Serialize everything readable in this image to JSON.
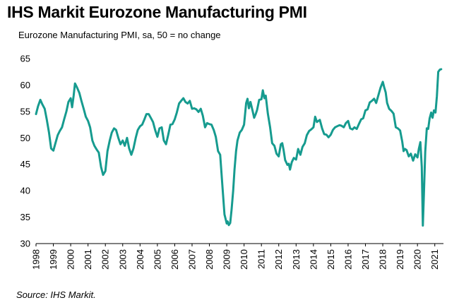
{
  "title": "IHS Markit Eurozone Manufacturing PMI",
  "subtitle": "Eurozone Manufacturing PMI, sa, 50 = no change",
  "source": "Source: IHS Markit.",
  "colors": {
    "line": "#169b8f",
    "axis": "#000000"
  },
  "chart_data": {
    "type": "line",
    "title": "IHS Markit Eurozone Manufacturing PMI",
    "ylabel": "",
    "xlabel": "",
    "ylim": [
      30,
      65
    ],
    "yticks": [
      "30",
      "35",
      "40",
      "45",
      "50",
      "55",
      "60",
      "65"
    ],
    "xlim": [
      1998.0,
      2021.5
    ],
    "xticks": [
      "1998",
      "1999",
      "2000",
      "2001",
      "2002",
      "2003",
      "2004",
      "2005",
      "2006",
      "2007",
      "2008",
      "2009",
      "2010",
      "2011",
      "2012",
      "2013",
      "2014",
      "2015",
      "2016",
      "2017",
      "2018",
      "2019",
      "2020",
      "2021"
    ],
    "grid": false,
    "series": [
      {
        "name": "",
        "points": [
          [
            1998.0,
            54.5
          ],
          [
            1998.12,
            56.0
          ],
          [
            1998.25,
            57.2
          ],
          [
            1998.37,
            56.3
          ],
          [
            1998.5,
            55.5
          ],
          [
            1998.62,
            53.5
          ],
          [
            1998.75,
            51.0
          ],
          [
            1998.87,
            48.0
          ],
          [
            1999.0,
            47.6
          ],
          [
            1999.12,
            49.0
          ],
          [
            1999.25,
            50.5
          ],
          [
            1999.37,
            51.3
          ],
          [
            1999.5,
            52.0
          ],
          [
            1999.62,
            53.5
          ],
          [
            1999.75,
            55.0
          ],
          [
            1999.87,
            56.8
          ],
          [
            2000.0,
            57.5
          ],
          [
            2000.08,
            55.8
          ],
          [
            2000.17,
            58.0
          ],
          [
            2000.25,
            60.3
          ],
          [
            2000.37,
            59.5
          ],
          [
            2000.5,
            58.5
          ],
          [
            2000.62,
            57.0
          ],
          [
            2000.75,
            55.5
          ],
          [
            2000.87,
            54.0
          ],
          [
            2001.0,
            53.2
          ],
          [
            2001.12,
            52.0
          ],
          [
            2001.25,
            49.5
          ],
          [
            2001.37,
            48.5
          ],
          [
            2001.5,
            47.8
          ],
          [
            2001.62,
            47.2
          ],
          [
            2001.75,
            44.5
          ],
          [
            2001.87,
            43.0
          ],
          [
            2002.0,
            43.7
          ],
          [
            2002.12,
            47.5
          ],
          [
            2002.25,
            49.5
          ],
          [
            2002.37,
            51.0
          ],
          [
            2002.5,
            51.8
          ],
          [
            2002.62,
            51.5
          ],
          [
            2002.75,
            50.0
          ],
          [
            2002.87,
            48.8
          ],
          [
            2003.0,
            49.5
          ],
          [
            2003.12,
            48.5
          ],
          [
            2003.25,
            50.0
          ],
          [
            2003.37,
            48.0
          ],
          [
            2003.5,
            46.8
          ],
          [
            2003.62,
            48.0
          ],
          [
            2003.75,
            50.0
          ],
          [
            2003.87,
            51.5
          ],
          [
            2004.0,
            52.2
          ],
          [
            2004.12,
            52.5
          ],
          [
            2004.25,
            53.5
          ],
          [
            2004.37,
            54.5
          ],
          [
            2004.5,
            54.5
          ],
          [
            2004.62,
            53.8
          ],
          [
            2004.75,
            53.0
          ],
          [
            2004.87,
            51.5
          ],
          [
            2005.0,
            50.2
          ],
          [
            2005.12,
            51.8
          ],
          [
            2005.25,
            52.0
          ],
          [
            2005.37,
            49.5
          ],
          [
            2005.5,
            48.8
          ],
          [
            2005.62,
            50.5
          ],
          [
            2005.75,
            52.5
          ],
          [
            2005.87,
            52.6
          ],
          [
            2006.0,
            53.5
          ],
          [
            2006.12,
            54.8
          ],
          [
            2006.25,
            56.5
          ],
          [
            2006.37,
            57.0
          ],
          [
            2006.5,
            57.5
          ],
          [
            2006.62,
            56.8
          ],
          [
            2006.75,
            56.5
          ],
          [
            2006.87,
            57.0
          ],
          [
            2007.0,
            55.5
          ],
          [
            2007.12,
            55.6
          ],
          [
            2007.25,
            55.4
          ],
          [
            2007.37,
            54.9
          ],
          [
            2007.5,
            55.5
          ],
          [
            2007.62,
            54.2
          ],
          [
            2007.75,
            52.0
          ],
          [
            2007.87,
            52.8
          ],
          [
            2008.0,
            52.6
          ],
          [
            2008.12,
            52.5
          ],
          [
            2008.25,
            51.5
          ],
          [
            2008.37,
            50.2
          ],
          [
            2008.5,
            47.5
          ],
          [
            2008.62,
            46.8
          ],
          [
            2008.75,
            41.0
          ],
          [
            2008.87,
            35.5
          ],
          [
            2009.0,
            33.8
          ],
          [
            2009.05,
            34.2
          ],
          [
            2009.12,
            33.5
          ],
          [
            2009.2,
            33.9
          ],
          [
            2009.28,
            36.5
          ],
          [
            2009.37,
            40.0
          ],
          [
            2009.45,
            44.0
          ],
          [
            2009.54,
            47.5
          ],
          [
            2009.62,
            49.5
          ],
          [
            2009.75,
            51.0
          ],
          [
            2009.87,
            51.5
          ],
          [
            2010.0,
            52.5
          ],
          [
            2010.12,
            56.6
          ],
          [
            2010.2,
            57.4
          ],
          [
            2010.28,
            55.6
          ],
          [
            2010.37,
            56.8
          ],
          [
            2010.5,
            55.0
          ],
          [
            2010.58,
            53.8
          ],
          [
            2010.67,
            54.5
          ],
          [
            2010.75,
            55.3
          ],
          [
            2010.87,
            57.2
          ],
          [
            2011.0,
            57.3
          ],
          [
            2011.08,
            59.0
          ],
          [
            2011.17,
            57.5
          ],
          [
            2011.25,
            58.0
          ],
          [
            2011.37,
            54.6
          ],
          [
            2011.5,
            52.0
          ],
          [
            2011.62,
            49.0
          ],
          [
            2011.75,
            48.5
          ],
          [
            2011.87,
            47.0
          ],
          [
            2012.0,
            46.5
          ],
          [
            2012.12,
            48.8
          ],
          [
            2012.2,
            49.0
          ],
          [
            2012.28,
            47.7
          ],
          [
            2012.37,
            45.8
          ],
          [
            2012.5,
            44.9
          ],
          [
            2012.58,
            45.1
          ],
          [
            2012.65,
            44.0
          ],
          [
            2012.75,
            45.4
          ],
          [
            2012.87,
            46.2
          ],
          [
            2013.0,
            45.9
          ],
          [
            2013.12,
            47.9
          ],
          [
            2013.25,
            46.8
          ],
          [
            2013.37,
            48.3
          ],
          [
            2013.5,
            49.0
          ],
          [
            2013.62,
            50.5
          ],
          [
            2013.75,
            51.3
          ],
          [
            2013.87,
            51.6
          ],
          [
            2014.0,
            52.0
          ],
          [
            2014.1,
            54.0
          ],
          [
            2014.2,
            53.0
          ],
          [
            2014.37,
            53.4
          ],
          [
            2014.5,
            51.8
          ],
          [
            2014.62,
            50.7
          ],
          [
            2014.75,
            50.6
          ],
          [
            2014.87,
            50.1
          ],
          [
            2015.0,
            50.6
          ],
          [
            2015.12,
            51.5
          ],
          [
            2015.25,
            52.0
          ],
          [
            2015.37,
            52.2
          ],
          [
            2015.5,
            52.4
          ],
          [
            2015.62,
            52.3
          ],
          [
            2015.75,
            52.0
          ],
          [
            2015.87,
            52.8
          ],
          [
            2016.0,
            53.2
          ],
          [
            2016.12,
            51.8
          ],
          [
            2016.25,
            51.6
          ],
          [
            2016.37,
            52.0
          ],
          [
            2016.5,
            51.7
          ],
          [
            2016.62,
            52.6
          ],
          [
            2016.75,
            53.5
          ],
          [
            2016.87,
            53.7
          ],
          [
            2017.0,
            55.2
          ],
          [
            2017.12,
            55.4
          ],
          [
            2017.25,
            56.7
          ],
          [
            2017.37,
            57.0
          ],
          [
            2017.5,
            57.4
          ],
          [
            2017.62,
            56.6
          ],
          [
            2017.75,
            58.1
          ],
          [
            2017.87,
            59.5
          ],
          [
            2018.0,
            60.6
          ],
          [
            2018.08,
            59.6
          ],
          [
            2018.17,
            58.6
          ],
          [
            2018.25,
            56.6
          ],
          [
            2018.37,
            55.5
          ],
          [
            2018.5,
            55.1
          ],
          [
            2018.62,
            54.6
          ],
          [
            2018.75,
            52.0
          ],
          [
            2018.87,
            51.8
          ],
          [
            2019.0,
            51.4
          ],
          [
            2019.12,
            49.3
          ],
          [
            2019.2,
            47.5
          ],
          [
            2019.28,
            47.9
          ],
          [
            2019.37,
            47.7
          ],
          [
            2019.5,
            46.5
          ],
          [
            2019.62,
            47.0
          ],
          [
            2019.75,
            45.7
          ],
          [
            2019.87,
            46.9
          ],
          [
            2020.0,
            46.3
          ],
          [
            2020.08,
            47.9
          ],
          [
            2020.17,
            49.2
          ],
          [
            2020.25,
            44.5
          ],
          [
            2020.31,
            33.4
          ],
          [
            2020.37,
            39.4
          ],
          [
            2020.45,
            47.4
          ],
          [
            2020.54,
            51.8
          ],
          [
            2020.62,
            51.7
          ],
          [
            2020.7,
            53.7
          ],
          [
            2020.79,
            54.8
          ],
          [
            2020.87,
            53.8
          ],
          [
            2020.95,
            55.2
          ],
          [
            2021.04,
            54.8
          ],
          [
            2021.12,
            57.9
          ],
          [
            2021.2,
            62.5
          ],
          [
            2021.29,
            62.9
          ],
          [
            2021.37,
            63.0
          ]
        ]
      }
    ]
  }
}
